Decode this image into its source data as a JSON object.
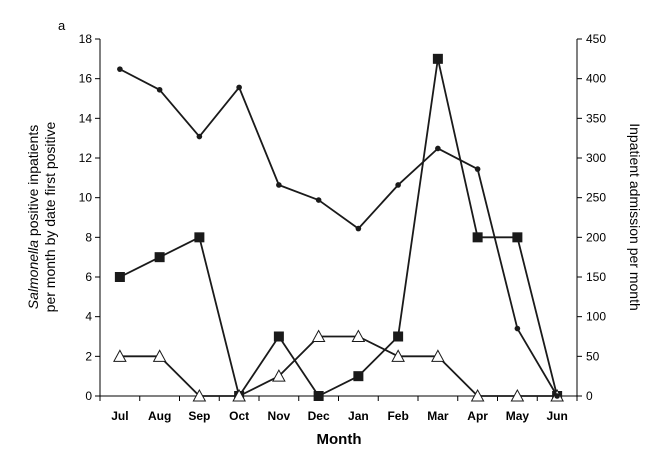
{
  "chart_data": {
    "type": "line",
    "panel_label": "a",
    "categories": [
      "Jul",
      "Aug",
      "Sep",
      "Oct",
      "Nov",
      "Dec",
      "Jan",
      "Feb",
      "Mar",
      "Apr",
      "May",
      "Jun"
    ],
    "xlabel": "Month",
    "ylabel_left_prefix": "Salmonella",
    "ylabel_left_line1_rest": " positive inpatients",
    "ylabel_left_line2": "per month by date first positive",
    "ylabel_right": "Inpatient admission per month",
    "ylim_left": [
      0,
      18
    ],
    "ylim_right": [
      0,
      450
    ],
    "yticks_left": [
      0,
      2,
      4,
      6,
      8,
      10,
      12,
      14,
      16,
      18
    ],
    "yticks_right": [
      0,
      50,
      100,
      150,
      200,
      250,
      300,
      350,
      400,
      450
    ],
    "grid": false,
    "series": [
      {
        "axis": "left",
        "marker": "square",
        "color": "#1a1a1a",
        "values": [
          6,
          7,
          8,
          0,
          3,
          0,
          1,
          3,
          17,
          8,
          8,
          0
        ]
      },
      {
        "axis": "left",
        "marker": "triangle-open",
        "color": "#1a1a1a",
        "values": [
          2,
          2,
          0,
          0,
          1,
          3,
          3,
          2,
          2,
          0,
          0,
          0
        ]
      },
      {
        "axis": "right",
        "marker": "dot",
        "color": "#1a1a1a",
        "values": [
          412,
          386,
          327,
          389,
          266,
          247,
          211,
          266,
          312,
          286,
          85,
          0
        ]
      }
    ]
  }
}
